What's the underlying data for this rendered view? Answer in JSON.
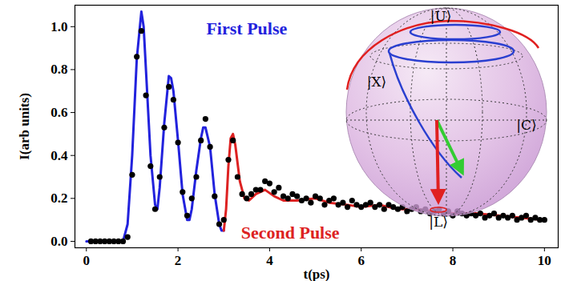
{
  "chart_data": {
    "type": "line",
    "x_label": "t(ps)",
    "y_label": "I(arb units)",
    "xlim": [
      -0.25,
      10.3
    ],
    "ylim": [
      -0.03,
      1.1
    ],
    "xticks": [
      0,
      2,
      4,
      6,
      8,
      10
    ],
    "yticks": [
      {
        "value": 0,
        "label": "0.0"
      },
      {
        "value": 0.2,
        "label": "0.2"
      },
      {
        "value": 0.4,
        "label": "0.4"
      },
      {
        "value": 0.6,
        "label": "0.6"
      },
      {
        "value": 0.8,
        "label": "0.8"
      },
      {
        "value": 1,
        "label": "1.0"
      }
    ],
    "series": [
      {
        "name": "First Pulse",
        "type": "line",
        "color": "#2222dd",
        "x": [
          0,
          0.5,
          0.8,
          0.9,
          1.0,
          1.1,
          1.2,
          1.25,
          1.3,
          1.4,
          1.5,
          1.55,
          1.6,
          1.7,
          1.8,
          1.85,
          1.9,
          2.0,
          2.1,
          2.2,
          2.25,
          2.3,
          2.4,
          2.5,
          2.55,
          2.6,
          2.7,
          2.8,
          2.9,
          2.95,
          3.0
        ],
        "values": [
          0,
          0,
          0,
          0.08,
          0.4,
          0.85,
          1.07,
          1.0,
          0.8,
          0.4,
          0.17,
          0.15,
          0.25,
          0.55,
          0.77,
          0.76,
          0.7,
          0.47,
          0.22,
          0.1,
          0.1,
          0.15,
          0.33,
          0.48,
          0.53,
          0.53,
          0.44,
          0.22,
          0.08,
          0.05,
          0.05
        ]
      },
      {
        "name": "Second Pulse",
        "type": "line",
        "color": "#dd2222",
        "x": [
          3.0,
          3.05,
          3.1,
          3.15,
          3.2,
          3.25,
          3.35,
          3.45,
          3.55,
          3.7,
          3.9,
          4.1,
          4.3,
          4.6,
          5.0,
          5.3,
          5.7,
          6.0,
          6.4,
          6.8,
          7.2,
          7.6,
          8.0,
          8.5,
          9.0,
          9.5,
          10.0
        ],
        "values": [
          0.05,
          0.15,
          0.35,
          0.48,
          0.5,
          0.45,
          0.28,
          0.2,
          0.19,
          0.22,
          0.24,
          0.21,
          0.19,
          0.19,
          0.2,
          0.18,
          0.17,
          0.16,
          0.17,
          0.15,
          0.15,
          0.14,
          0.13,
          0.13,
          0.12,
          0.11,
          0.1
        ]
      },
      {
        "type": "scatter",
        "marker": "circle",
        "color": "#000000",
        "x": [
          0.1,
          0.2,
          0.3,
          0.4,
          0.5,
          0.6,
          0.7,
          0.8,
          0.9,
          1.0,
          1.1,
          1.2,
          1.3,
          1.4,
          1.5,
          1.6,
          1.7,
          1.8,
          1.9,
          2.0,
          2.1,
          2.2,
          2.3,
          2.4,
          2.5,
          2.6,
          2.7,
          2.8,
          2.9,
          3.0,
          3.1,
          3.2,
          3.3,
          3.4,
          3.5,
          3.6,
          3.7,
          3.8,
          3.9,
          4.0,
          4.1,
          4.2,
          4.3,
          4.4,
          4.5,
          4.6,
          4.7,
          4.8,
          4.9,
          5.0,
          5.1,
          5.2,
          5.3,
          5.4,
          5.5,
          5.6,
          5.7,
          5.8,
          5.9,
          6.0,
          6.1,
          6.2,
          6.3,
          6.4,
          6.5,
          6.6,
          6.7,
          6.8,
          6.9,
          7.0,
          7.1,
          7.2,
          7.3,
          7.4,
          7.5,
          7.6,
          7.7,
          7.8,
          7.9,
          8.0,
          8.1,
          8.2,
          8.3,
          8.4,
          8.5,
          8.6,
          8.7,
          8.8,
          8.9,
          9.0,
          9.1,
          9.2,
          9.3,
          9.4,
          9.5,
          9.6,
          9.7,
          9.8,
          9.9,
          10.0
        ],
        "values": [
          0,
          0,
          0,
          0,
          0,
          0,
          0,
          0,
          0.02,
          0.31,
          0.86,
          0.98,
          0.68,
          0.35,
          0.15,
          0.3,
          0.53,
          0.72,
          0.66,
          0.46,
          0.23,
          0.12,
          0.2,
          0.3,
          0.47,
          0.57,
          0.44,
          0.21,
          0.08,
          0.1,
          0.38,
          0.47,
          0.3,
          0.22,
          0.2,
          0.22,
          0.24,
          0.24,
          0.28,
          0.27,
          0.23,
          0.25,
          0.21,
          0.2,
          0.22,
          0.21,
          0.19,
          0.2,
          0.18,
          0.21,
          0.2,
          0.17,
          0.19,
          0.2,
          0.17,
          0.18,
          0.16,
          0.19,
          0.17,
          0.16,
          0.17,
          0.18,
          0.16,
          0.17,
          0.15,
          0.17,
          0.16,
          0.15,
          0.16,
          0.14,
          0.15,
          0.16,
          0.14,
          0.15,
          0.13,
          0.14,
          0.15,
          0.13,
          0.14,
          0.12,
          0.14,
          0.13,
          0.12,
          0.13,
          0.12,
          0.13,
          0.11,
          0.12,
          0.13,
          0.11,
          0.12,
          0.11,
          0.12,
          0.1,
          0.11,
          0.12,
          0.1,
          0.11,
          0.1,
          0.1
        ]
      }
    ],
    "annotations": [
      {
        "text": "First Pulse",
        "x": 3.5,
        "y": 0.99,
        "color": "#2222dd"
      },
      {
        "text": "Second Pulse",
        "x": 4.45,
        "y": 0.04,
        "color": "#dd2222"
      }
    ],
    "inset": {
      "labels": [
        "|U⟩",
        "|X⟩",
        "|C⟩",
        "|L⟩"
      ]
    }
  }
}
